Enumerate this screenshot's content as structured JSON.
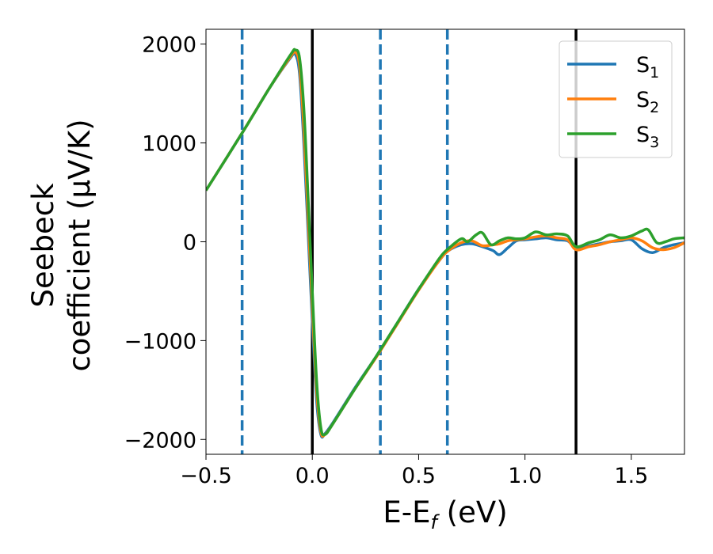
{
  "chart_data": {
    "type": "line",
    "xlabel_main": "E-E",
    "xlabel_sub": "f",
    "xlabel_unit": " (eV)",
    "ylabel_line1": "Seebeck",
    "ylabel_line2": "coefficient  (μV/K)",
    "xlim": [
      -0.5,
      1.75
    ],
    "ylim": [
      -2150,
      2150
    ],
    "xticks": [
      -0.5,
      0.0,
      0.5,
      1.0,
      1.5
    ],
    "xtick_labels": [
      "−0.5",
      "0.0",
      "0.5",
      "1.0",
      "1.5"
    ],
    "yticks": [
      2000,
      1000,
      0,
      -1000,
      -2000
    ],
    "ytick_labels": [
      "2000",
      "1000",
      "0",
      "−1000",
      "−2000"
    ],
    "grid": false,
    "legend_position": "top-right",
    "vlines_dashed": [
      -0.33,
      0.32,
      0.635
    ],
    "vlines_solid": [
      0.0,
      1.24
    ],
    "vline_dashed_color": "#1f77b4",
    "vline_solid_color": "#000000",
    "series": [
      {
        "name": "S",
        "subscript": "1",
        "color": "#1f77b4",
        "x": [
          -0.5,
          -0.33,
          -0.2,
          -0.1,
          -0.08,
          -0.06,
          -0.04,
          -0.02,
          0.0,
          0.02,
          0.04,
          0.06,
          0.1,
          0.2,
          0.3,
          0.4,
          0.5,
          0.6,
          0.64,
          0.7,
          0.75,
          0.8,
          0.85,
          0.88,
          0.92,
          0.96,
          1.0,
          1.05,
          1.1,
          1.15,
          1.2,
          1.24,
          1.3,
          1.35,
          1.4,
          1.45,
          1.5,
          1.55,
          1.6,
          1.65,
          1.7,
          1.75
        ],
        "y": [
          520,
          1100,
          1560,
          1870,
          1900,
          1700,
          1000,
          100,
          -800,
          -1600,
          -1950,
          -1940,
          -1820,
          -1480,
          -1160,
          -820,
          -480,
          -180,
          -90,
          -30,
          -20,
          -50,
          -90,
          -130,
          -60,
          10,
          20,
          30,
          40,
          20,
          10,
          -60,
          -40,
          -20,
          0,
          10,
          20,
          -70,
          -110,
          -60,
          -30,
          -10
        ]
      },
      {
        "name": "S",
        "subscript": "2",
        "color": "#ff7f0e",
        "x": [
          -0.5,
          -0.33,
          -0.2,
          -0.1,
          -0.08,
          -0.06,
          -0.04,
          -0.02,
          0.0,
          0.02,
          0.04,
          0.06,
          0.1,
          0.2,
          0.3,
          0.4,
          0.5,
          0.6,
          0.64,
          0.7,
          0.75,
          0.8,
          0.85,
          0.88,
          0.92,
          0.96,
          1.0,
          1.05,
          1.1,
          1.15,
          1.2,
          1.24,
          1.3,
          1.35,
          1.4,
          1.45,
          1.5,
          1.55,
          1.6,
          1.65,
          1.7,
          1.75
        ],
        "y": [
          520,
          1100,
          1560,
          1880,
          1920,
          1780,
          1150,
          250,
          -650,
          -1500,
          -1920,
          -1950,
          -1830,
          -1490,
          -1170,
          -830,
          -490,
          -180,
          -90,
          -10,
          10,
          -40,
          -30,
          -20,
          10,
          20,
          30,
          50,
          60,
          40,
          20,
          -80,
          -50,
          -30,
          0,
          20,
          40,
          10,
          -60,
          -80,
          -60,
          -10
        ]
      },
      {
        "name": "S",
        "subscript": "3",
        "color": "#2ca02c",
        "x": [
          -0.5,
          -0.33,
          -0.2,
          -0.1,
          -0.08,
          -0.06,
          -0.04,
          -0.02,
          0.0,
          0.02,
          0.04,
          0.06,
          0.1,
          0.2,
          0.3,
          0.4,
          0.5,
          0.6,
          0.64,
          0.7,
          0.73,
          0.77,
          0.8,
          0.84,
          0.88,
          0.92,
          0.96,
          1.0,
          1.05,
          1.1,
          1.15,
          1.2,
          1.24,
          1.3,
          1.35,
          1.4,
          1.45,
          1.5,
          1.55,
          1.58,
          1.62,
          1.66,
          1.7,
          1.75
        ],
        "y": [
          520,
          1100,
          1560,
          1900,
          1940,
          1860,
          1350,
          450,
          -500,
          -1400,
          -1880,
          -1950,
          -1830,
          -1490,
          -1160,
          -820,
          -480,
          -160,
          -70,
          30,
          0,
          70,
          90,
          -30,
          10,
          40,
          30,
          40,
          100,
          70,
          80,
          60,
          -50,
          -10,
          20,
          70,
          40,
          60,
          110,
          120,
          -10,
          0,
          30,
          40
        ]
      }
    ]
  }
}
